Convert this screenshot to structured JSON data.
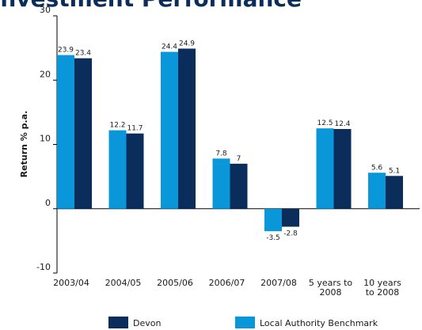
{
  "chart_data": {
    "type": "bar",
    "title": "Investment Performance",
    "y_label": "Return % p.a.",
    "categories": [
      "2003/04",
      "2004/05",
      "2005/06",
      "2006/07",
      "2007/08",
      "5 years to 2008",
      "10 years to 2008"
    ],
    "series": [
      {
        "name": "Local Authority Benchmark",
        "color": "#0a97d9",
        "values": [
          23.9,
          12.2,
          24.4,
          7.8,
          -3.5,
          12.5,
          5.6
        ]
      },
      {
        "name": "Devon",
        "color": "#0b2d5b",
        "values": [
          23.4,
          11.7,
          24.9,
          7.0,
          -2.8,
          12.4,
          5.1
        ]
      }
    ],
    "legend_order": [
      "Devon",
      "Local Authority Benchmark"
    ],
    "ylim": [
      -10,
      30
    ],
    "yticks": [
      -10,
      0,
      10,
      20,
      30
    ],
    "grid": false
  }
}
